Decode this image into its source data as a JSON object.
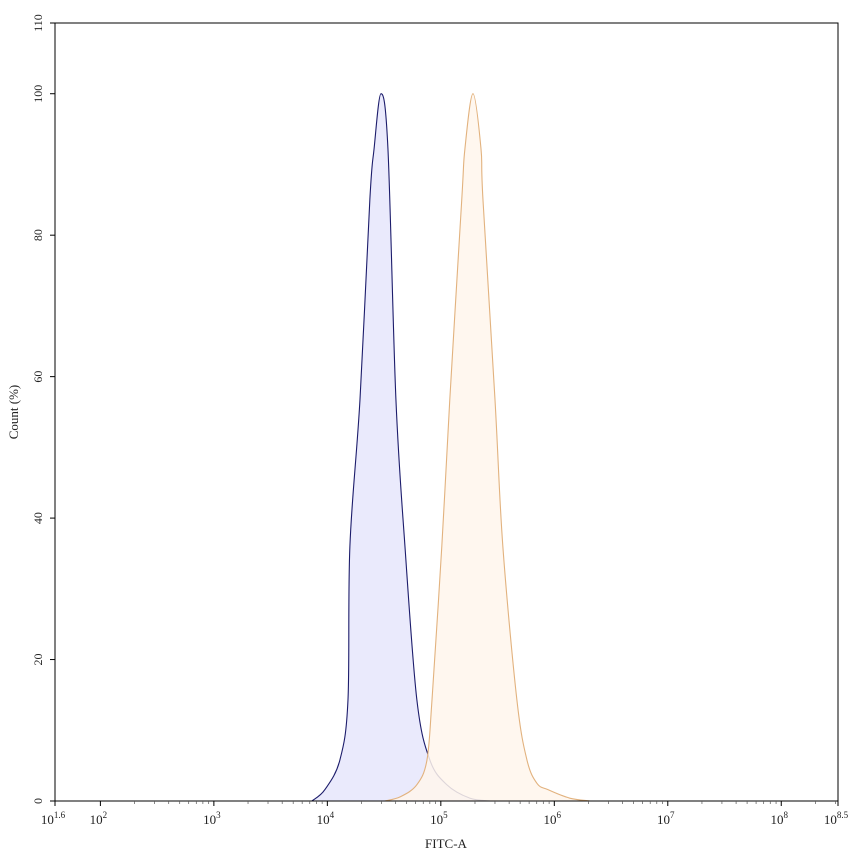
{
  "chart_data": {
    "type": "area",
    "title": "",
    "xlabel": "FITC-A",
    "ylabel": "Count (%)",
    "xscale": "log",
    "xlim": [
      39.81,
      316227766
    ],
    "ylim": [
      0,
      110
    ],
    "grid": false,
    "x_ticks": [
      {
        "base": "10",
        "exp": "1.6",
        "value": 39.81
      },
      {
        "base": "10",
        "exp": "2",
        "value": 100
      },
      {
        "base": "10",
        "exp": "3",
        "value": 1000
      },
      {
        "base": "10",
        "exp": "4",
        "value": 10000
      },
      {
        "base": "10",
        "exp": "5",
        "value": 100000
      },
      {
        "base": "10",
        "exp": "6",
        "value": 1000000
      },
      {
        "base": "10",
        "exp": "7",
        "value": 10000000
      },
      {
        "base": "10",
        "exp": "8",
        "value": 100000000
      },
      {
        "base": "10",
        "exp": "8.5",
        "value": 316227766
      }
    ],
    "y_ticks": [
      "0",
      "20",
      "40",
      "60",
      "80",
      "100",
      "110"
    ],
    "series": [
      {
        "color": "#1c1c6b",
        "fill": "#e6e6fb",
        "x": [
          7300,
          9500,
          12900,
          15200,
          15800,
          19400,
          23700,
          25800,
          29700,
          34200,
          40200,
          48300,
          61500,
          80000,
          113000,
          180000,
          271000
        ],
        "y": [
          0,
          1.6,
          5.8,
          14.3,
          36,
          56.8,
          85.1,
          92.2,
          100,
          92.2,
          56.8,
          36,
          14.3,
          5.8,
          2.3,
          0.4,
          0
        ]
      },
      {
        "color": "#e2b27e",
        "fill": "#fff6ec",
        "x": [
          32000,
          44000,
          61500,
          75500,
          83600,
          102000,
          120000,
          153000,
          163000,
          192000,
          226000,
          235000,
          300000,
          352000,
          468000,
          574000,
          703000,
          879000,
          1370000,
          2060000
        ],
        "y": [
          0,
          0.6,
          2.3,
          5.8,
          14.3,
          36,
          56.8,
          85.1,
          92.2,
          100,
          92.2,
          85.1,
          56.8,
          36,
          14.3,
          5.8,
          2.5,
          1.6,
          0.4,
          0
        ]
      }
    ]
  }
}
